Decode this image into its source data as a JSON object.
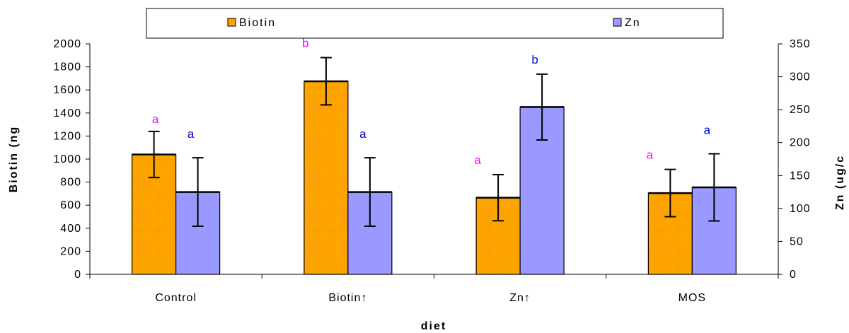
{
  "chart_data": {
    "type": "bar",
    "categories": [
      "Control",
      "Biotin↑",
      "Zn↑",
      "MOS"
    ],
    "xlabel": "diet",
    "ylabel_left": "Biotin (ng",
    "ylabel_right": "Zn (ug/c",
    "ylim_left": [
      0,
      2000
    ],
    "ylim_right": [
      0,
      350
    ],
    "yticks_left": [
      0,
      200,
      400,
      600,
      800,
      1000,
      1200,
      1400,
      1600,
      1800,
      2000
    ],
    "yticks_right": [
      0,
      50,
      100,
      150,
      200,
      250,
      300,
      350
    ],
    "legend_position": "top",
    "grid": false,
    "series": [
      {
        "name": "Biotin",
        "axis": "left",
        "color": "#FFA500",
        "values": [
          1040,
          1675,
          665,
          705
        ],
        "error": [
          200,
          205,
          200,
          205
        ],
        "labels": [
          "a",
          "b",
          "a",
          "a"
        ],
        "label_color": "#FF00FF"
      },
      {
        "name": "Zn",
        "axis": "right",
        "color": "#9999FF",
        "values": [
          125,
          125,
          254,
          132
        ],
        "error": [
          52,
          52,
          50,
          51
        ],
        "labels": [
          "a",
          "a",
          "b",
          "a"
        ],
        "label_color": "#0000CC"
      }
    ]
  }
}
